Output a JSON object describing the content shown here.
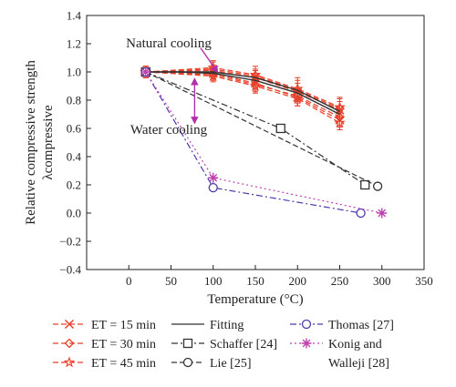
{
  "chart_data": {
    "type": "line",
    "xlabel": "Temperature (°C)",
    "ylabel": "Relative compressive strength",
    "ylabel_sub": "λcompressive",
    "xlim": [
      -50,
      350
    ],
    "ylim": [
      -0.4,
      1.4
    ],
    "x_ticks": [
      "0",
      "50",
      "100",
      "150",
      "200",
      "250",
      "300",
      "350"
    ],
    "y_ticks": [
      "−0.4",
      "−0.2",
      "0.0",
      "0.2",
      "0.4",
      "0.6",
      "0.8",
      "1.0",
      "1.2",
      "1.4"
    ],
    "grid": false,
    "annotations": [
      {
        "text": "Natural cooling",
        "arrow_from": [
          85,
          1.17
        ],
        "arrow_to": [
          105,
          1.0
        ]
      },
      {
        "text": "Water cooling",
        "arrow_from": [
          78,
          0.71
        ],
        "arrow_to": [
          78,
          0.95
        ]
      }
    ],
    "series": [
      {
        "name": "ET = 15 min",
        "color": "#e8402a",
        "marker": "x",
        "dash": "dash",
        "x": [
          20,
          100,
          150,
          200,
          250
        ],
        "y": [
          1.0,
          1.01,
          0.96,
          0.86,
          0.73
        ],
        "err": [
          0.04,
          0.04,
          0.05,
          0.06,
          0.06
        ]
      },
      {
        "name": "ET = 15 min",
        "color": "#e8402a",
        "marker": "x",
        "dash": "dash",
        "x": [
          20,
          100,
          150,
          200,
          250
        ],
        "y": [
          1.0,
          0.99,
          0.92,
          0.82,
          0.66
        ],
        "err": [
          0.04,
          0.04,
          0.05,
          0.06,
          0.05
        ]
      },
      {
        "name": "ET = 30 min",
        "color": "#e8402a",
        "marker": "diamond",
        "dash": "dash",
        "x": [
          20,
          100,
          150,
          200,
          250
        ],
        "y": [
          1.0,
          1.02,
          0.97,
          0.87,
          0.74
        ],
        "err": [
          0.04,
          0.05,
          0.05,
          0.07,
          0.07
        ]
      },
      {
        "name": "ET = 30 min",
        "color": "#e8402a",
        "marker": "diamond",
        "dash": "dash",
        "x": [
          20,
          100,
          150,
          200,
          250
        ],
        "y": [
          1.0,
          0.98,
          0.91,
          0.83,
          0.68
        ],
        "err": [
          0.04,
          0.04,
          0.05,
          0.05,
          0.06
        ]
      },
      {
        "name": "ET = 45 min",
        "color": "#e8402a",
        "marker": "star",
        "dash": "dash",
        "x": [
          20,
          100,
          150,
          200,
          250
        ],
        "y": [
          1.0,
          1.03,
          0.98,
          0.88,
          0.75
        ],
        "err": [
          0.04,
          0.05,
          0.06,
          0.08,
          0.07
        ]
      },
      {
        "name": "ET = 45 min",
        "color": "#e8402a",
        "marker": "star",
        "dash": "dash",
        "x": [
          20,
          100,
          150,
          200,
          250
        ],
        "y": [
          1.0,
          0.97,
          0.9,
          0.81,
          0.64
        ],
        "err": [
          0.04,
          0.04,
          0.05,
          0.05,
          0.05
        ]
      },
      {
        "name": "Fitting",
        "color": "#333333",
        "marker": "none",
        "dash": "solid",
        "x": [
          20,
          60,
          100,
          150,
          200,
          250
        ],
        "y": [
          1.0,
          1.0,
          0.99,
          0.94,
          0.85,
          0.7
        ]
      },
      {
        "name": "Fitting",
        "color": "#333333",
        "marker": "none",
        "dash": "solid",
        "x": [
          20,
          60,
          100,
          150,
          200,
          250
        ],
        "y": [
          1.0,
          1.0,
          1.0,
          0.96,
          0.87,
          0.72
        ]
      },
      {
        "name": "Schaffer [24]",
        "color": "#333333",
        "marker": "square",
        "dash": "dashdot",
        "x": [
          20,
          180,
          280
        ],
        "y": [
          1.0,
          0.6,
          0.2
        ]
      },
      {
        "name": "Lie [25]",
        "color": "#333333",
        "marker": "circle",
        "dash": "dash",
        "x": [
          20,
          295
        ],
        "y": [
          1.0,
          0.19
        ]
      },
      {
        "name": "Thomas [27]",
        "color": "#4a3aa8",
        "marker": "circle",
        "dash": "dashdot",
        "x": [
          20,
          100,
          275
        ],
        "y": [
          1.0,
          0.18,
          0.0
        ]
      },
      {
        "name": "Konig and Walleji [28]",
        "color": "#c040b0",
        "marker": "asterisk",
        "dash": "dot",
        "x": [
          20,
          100,
          300
        ],
        "y": [
          1.0,
          0.25,
          0.0
        ]
      }
    ],
    "legend": {
      "placement": "bottom",
      "columns": [
        [
          {
            "label": "ET = 15 min",
            "marker": "x",
            "color": "#e8402a",
            "dash": "dash"
          },
          {
            "label": "ET = 30 min",
            "marker": "diamond",
            "color": "#e8402a",
            "dash": "dash"
          },
          {
            "label": "ET = 45 min",
            "marker": "star",
            "color": "#e8402a",
            "dash": "dash"
          }
        ],
        [
          {
            "label": "Fitting",
            "marker": "none",
            "color": "#333333",
            "dash": "solid"
          },
          {
            "label": "Schaffer [24]",
            "marker": "square",
            "color": "#333333",
            "dash": "dashdot"
          },
          {
            "label": "Lie [25]",
            "marker": "circle",
            "color": "#333333",
            "dash": "dash"
          }
        ],
        [
          {
            "label": "Thomas [27]",
            "marker": "circle",
            "color": "#4a3aa8",
            "dash": "dashdot"
          },
          {
            "label": "Konig and",
            "label2": "Walleji [28]",
            "marker": "asterisk",
            "color": "#c040b0",
            "dash": "dot"
          }
        ]
      ]
    }
  }
}
